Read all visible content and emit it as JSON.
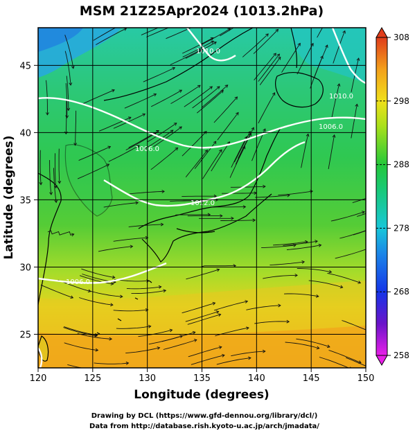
{
  "title": "MSM 21Z25Apr2024 (1013.2hPa)",
  "x_axis": {
    "label": "Longitude (degrees)",
    "ticks": [
      "120",
      "125",
      "130",
      "135",
      "140",
      "145",
      "150"
    ],
    "range": [
      120,
      150
    ]
  },
  "y_axis": {
    "label": "Latitude  (degrees)",
    "ticks": [
      "25",
      "30",
      "35",
      "40",
      "45"
    ],
    "range": [
      22.5,
      47.8
    ]
  },
  "colorbar": {
    "ticks": [
      "258",
      "268",
      "278",
      "288",
      "298",
      "308"
    ],
    "range": [
      258,
      308
    ],
    "colors": [
      "#e81fe8",
      "#5a1bd6",
      "#1f3ff0",
      "#12b5d6",
      "#18c95a",
      "#3fc81b",
      "#b8e01c",
      "#f8c81b",
      "#f3801b",
      "#e0401b"
    ]
  },
  "contour_labels": [
    "1010.0",
    "1010.0",
    "1006.0",
    "1006.0",
    "1012.0",
    "1006.0"
  ],
  "footer": {
    "line1": "Drawing by DCL (https://www.gfd-dennou.org/library/dcl/)",
    "line2": "Data from http://database.rish.kyoto-u.ac.jp/arch/jmadata/"
  },
  "colors": {
    "contour": "#ffffff",
    "coast": "#000000",
    "grid": "#000000"
  }
}
